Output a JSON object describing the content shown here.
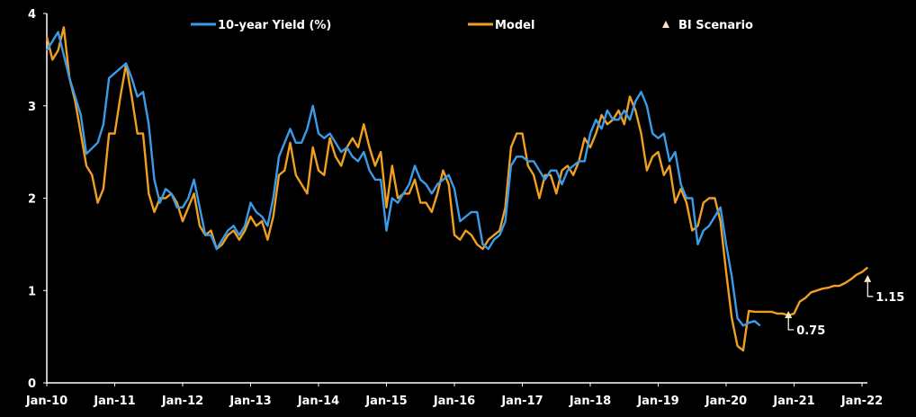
{
  "chart_data": {
    "type": "line",
    "title": "",
    "xlabel": "",
    "ylabel": "",
    "ylim": [
      0,
      4
    ],
    "y_ticks": [
      "0",
      "1",
      "2",
      "3",
      "4"
    ],
    "x_ticks": [
      "Jan-10",
      "Jan-11",
      "Jan-12",
      "Jan-13",
      "Jan-14",
      "Jan-15",
      "Jan-16",
      "Jan-17",
      "Jan-18",
      "Jan-19",
      "Jan-20",
      "Jan-21",
      "Jan-22"
    ],
    "grid": false,
    "legend_position": "top",
    "series": [
      {
        "name": "10-year Yield (%)",
        "color": "#3a9ce8",
        "points": [
          [
            "Jan-10",
            3.6
          ],
          [
            "Mar-10",
            3.8
          ],
          [
            "May-10",
            3.3
          ],
          [
            "Jul-10",
            2.9
          ],
          [
            "Aug-10",
            2.48
          ],
          [
            "Oct-10",
            2.6
          ],
          [
            "Nov-10",
            2.8
          ],
          [
            "Dec-10",
            3.3
          ],
          [
            "Mar-11",
            3.46
          ],
          [
            "Apr-11",
            3.3
          ],
          [
            "May-11",
            3.1
          ],
          [
            "Jun-11",
            3.15
          ],
          [
            "Jul-11",
            2.8
          ],
          [
            "Aug-11",
            2.2
          ],
          [
            "Sep-11",
            1.95
          ],
          [
            "Oct-11",
            2.1
          ],
          [
            "Nov-11",
            2.05
          ],
          [
            "Dec-11",
            1.9
          ],
          [
            "Jan-12",
            1.9
          ],
          [
            "Feb-12",
            2.0
          ],
          [
            "Mar-12",
            2.2
          ],
          [
            "Apr-12",
            1.9
          ],
          [
            "May-12",
            1.6
          ],
          [
            "Jun-12",
            1.6
          ],
          [
            "Jul-12",
            1.45
          ],
          [
            "Aug-12",
            1.55
          ],
          [
            "Sep-12",
            1.65
          ],
          [
            "Oct-12",
            1.7
          ],
          [
            "Nov-12",
            1.6
          ],
          [
            "Dec-12",
            1.7
          ],
          [
            "Jan-13",
            1.95
          ],
          [
            "Feb-13",
            1.85
          ],
          [
            "Mar-13",
            1.8
          ],
          [
            "Apr-13",
            1.7
          ],
          [
            "May-13",
            2.0
          ],
          [
            "Jun-13",
            2.45
          ],
          [
            "Jul-13",
            2.6
          ],
          [
            "Aug-13",
            2.75
          ],
          [
            "Sep-13",
            2.6
          ],
          [
            "Oct-13",
            2.6
          ],
          [
            "Nov-13",
            2.75
          ],
          [
            "Dec-13",
            3.0
          ],
          [
            "Jan-14",
            2.7
          ],
          [
            "Feb-14",
            2.65
          ],
          [
            "Mar-14",
            2.7
          ],
          [
            "Apr-14",
            2.6
          ],
          [
            "May-14",
            2.5
          ],
          [
            "Jun-14",
            2.55
          ],
          [
            "Jul-14",
            2.45
          ],
          [
            "Aug-14",
            2.4
          ],
          [
            "Sep-14",
            2.5
          ],
          [
            "Oct-14",
            2.3
          ],
          [
            "Nov-14",
            2.2
          ],
          [
            "Dec-14",
            2.2
          ],
          [
            "Jan-15",
            1.65
          ],
          [
            "Feb-15",
            2.0
          ],
          [
            "Mar-15",
            1.95
          ],
          [
            "Apr-15",
            2.05
          ],
          [
            "May-15",
            2.15
          ],
          [
            "Jun-15",
            2.35
          ],
          [
            "Jul-15",
            2.2
          ],
          [
            "Aug-15",
            2.15
          ],
          [
            "Sep-15",
            2.05
          ],
          [
            "Oct-15",
            2.15
          ],
          [
            "Nov-15",
            2.2
          ],
          [
            "Dec-15",
            2.25
          ],
          [
            "Jan-16",
            2.1
          ],
          [
            "Feb-16",
            1.75
          ],
          [
            "Mar-16",
            1.8
          ],
          [
            "Apr-16",
            1.85
          ],
          [
            "May-16",
            1.85
          ],
          [
            "Jun-16",
            1.5
          ],
          [
            "Jul-16",
            1.45
          ],
          [
            "Aug-16",
            1.55
          ],
          [
            "Sep-16",
            1.6
          ],
          [
            "Oct-16",
            1.75
          ],
          [
            "Nov-16",
            2.35
          ],
          [
            "Dec-16",
            2.45
          ],
          [
            "Jan-17",
            2.45
          ],
          [
            "Feb-17",
            2.4
          ],
          [
            "Mar-17",
            2.4
          ],
          [
            "Apr-17",
            2.3
          ],
          [
            "May-17",
            2.2
          ],
          [
            "Jun-17",
            2.3
          ],
          [
            "Jul-17",
            2.3
          ],
          [
            "Aug-17",
            2.15
          ],
          [
            "Sep-17",
            2.3
          ],
          [
            "Oct-17",
            2.35
          ],
          [
            "Nov-17",
            2.4
          ],
          [
            "Dec-17",
            2.4
          ],
          [
            "Jan-18",
            2.7
          ],
          [
            "Feb-18",
            2.85
          ],
          [
            "Mar-18",
            2.75
          ],
          [
            "Apr-18",
            2.95
          ],
          [
            "May-18",
            2.85
          ],
          [
            "Jun-18",
            2.85
          ],
          [
            "Jul-18",
            2.95
          ],
          [
            "Aug-18",
            2.85
          ],
          [
            "Sep-18",
            3.05
          ],
          [
            "Oct-18",
            3.15
          ],
          [
            "Nov-18",
            3.0
          ],
          [
            "Dec-18",
            2.7
          ],
          [
            "Jan-19",
            2.65
          ],
          [
            "Feb-19",
            2.7
          ],
          [
            "Mar-19",
            2.4
          ],
          [
            "Apr-19",
            2.5
          ],
          [
            "May-19",
            2.15
          ],
          [
            "Jun-19",
            2.0
          ],
          [
            "Jul-19",
            2.0
          ],
          [
            "Aug-19",
            1.5
          ],
          [
            "Sep-19",
            1.65
          ],
          [
            "Oct-19",
            1.7
          ],
          [
            "Nov-19",
            1.8
          ],
          [
            "Dec-19",
            1.9
          ],
          [
            "Jan-20",
            1.5
          ],
          [
            "Feb-20",
            1.15
          ],
          [
            "Mar-20",
            0.7
          ],
          [
            "Apr-20",
            0.62
          ],
          [
            "May-20",
            0.65
          ],
          [
            "Jun-20",
            0.67
          ],
          [
            "Jul-20",
            0.62
          ]
        ]
      },
      {
        "name": "Model",
        "color": "#f0a020",
        "points": [
          [
            "Jan-10",
            3.75
          ],
          [
            "Feb-10",
            3.5
          ],
          [
            "Mar-10",
            3.6
          ],
          [
            "Apr-10",
            3.85
          ],
          [
            "May-10",
            3.3
          ],
          [
            "Jun-10",
            3.05
          ],
          [
            "Jul-10",
            2.7
          ],
          [
            "Aug-10",
            2.35
          ],
          [
            "Sep-10",
            2.25
          ],
          [
            "Oct-10",
            1.95
          ],
          [
            "Nov-10",
            2.1
          ],
          [
            "Dec-10",
            2.7
          ],
          [
            "Jan-11",
            2.7
          ],
          [
            "Feb-11",
            3.1
          ],
          [
            "Mar-11",
            3.45
          ],
          [
            "Apr-11",
            3.1
          ],
          [
            "May-11",
            2.7
          ],
          [
            "Jun-11",
            2.7
          ],
          [
            "Jul-11",
            2.05
          ],
          [
            "Aug-11",
            1.85
          ],
          [
            "Sep-11",
            2.0
          ],
          [
            "Oct-11",
            2.0
          ],
          [
            "Nov-11",
            2.05
          ],
          [
            "Dec-11",
            1.95
          ],
          [
            "Jan-12",
            1.75
          ],
          [
            "Feb-12",
            1.9
          ],
          [
            "Mar-12",
            2.05
          ],
          [
            "Apr-12",
            1.7
          ],
          [
            "May-12",
            1.6
          ],
          [
            "Jun-12",
            1.65
          ],
          [
            "Jul-12",
            1.45
          ],
          [
            "Aug-12",
            1.5
          ],
          [
            "Sep-12",
            1.6
          ],
          [
            "Oct-12",
            1.65
          ],
          [
            "Nov-12",
            1.55
          ],
          [
            "Dec-12",
            1.65
          ],
          [
            "Jan-13",
            1.8
          ],
          [
            "Feb-13",
            1.7
          ],
          [
            "Mar-13",
            1.75
          ],
          [
            "Apr-13",
            1.55
          ],
          [
            "May-13",
            1.8
          ],
          [
            "Jun-13",
            2.25
          ],
          [
            "Jul-13",
            2.3
          ],
          [
            "Aug-13",
            2.6
          ],
          [
            "Sep-13",
            2.25
          ],
          [
            "Oct-13",
            2.15
          ],
          [
            "Nov-13",
            2.05
          ],
          [
            "Dec-13",
            2.55
          ],
          [
            "Jan-14",
            2.3
          ],
          [
            "Feb-14",
            2.25
          ],
          [
            "Mar-14",
            2.65
          ],
          [
            "Apr-14",
            2.45
          ],
          [
            "May-14",
            2.35
          ],
          [
            "Jun-14",
            2.55
          ],
          [
            "Jul-14",
            2.65
          ],
          [
            "Aug-14",
            2.55
          ],
          [
            "Sep-14",
            2.8
          ],
          [
            "Oct-14",
            2.55
          ],
          [
            "Nov-14",
            2.35
          ],
          [
            "Dec-14",
            2.5
          ],
          [
            "Jan-15",
            1.9
          ],
          [
            "Feb-15",
            2.35
          ],
          [
            "Mar-15",
            2.0
          ],
          [
            "Apr-15",
            2.05
          ],
          [
            "May-15",
            2.05
          ],
          [
            "Jun-15",
            2.2
          ],
          [
            "Jul-15",
            1.95
          ],
          [
            "Aug-15",
            1.95
          ],
          [
            "Sep-15",
            1.85
          ],
          [
            "Oct-15",
            2.05
          ],
          [
            "Nov-15",
            2.3
          ],
          [
            "Dec-15",
            2.15
          ],
          [
            "Jan-16",
            1.6
          ],
          [
            "Feb-16",
            1.55
          ],
          [
            "Mar-16",
            1.65
          ],
          [
            "Apr-16",
            1.6
          ],
          [
            "May-16",
            1.5
          ],
          [
            "Jun-16",
            1.45
          ],
          [
            "Jul-16",
            1.55
          ],
          [
            "Aug-16",
            1.6
          ],
          [
            "Sep-16",
            1.65
          ],
          [
            "Oct-16",
            1.9
          ],
          [
            "Nov-16",
            2.55
          ],
          [
            "Dec-16",
            2.7
          ],
          [
            "Jan-17",
            2.7
          ],
          [
            "Feb-17",
            2.35
          ],
          [
            "Mar-17",
            2.25
          ],
          [
            "Apr-17",
            2.0
          ],
          [
            "May-17",
            2.25
          ],
          [
            "Jun-17",
            2.25
          ],
          [
            "Jul-17",
            2.05
          ],
          [
            "Aug-17",
            2.3
          ],
          [
            "Sep-17",
            2.35
          ],
          [
            "Oct-17",
            2.25
          ],
          [
            "Nov-17",
            2.4
          ],
          [
            "Dec-17",
            2.65
          ],
          [
            "Jan-18",
            2.55
          ],
          [
            "Feb-18",
            2.7
          ],
          [
            "Mar-18",
            2.9
          ],
          [
            "Apr-18",
            2.8
          ],
          [
            "May-18",
            2.85
          ],
          [
            "Jun-18",
            2.95
          ],
          [
            "Jul-18",
            2.8
          ],
          [
            "Aug-18",
            3.1
          ],
          [
            "Sep-18",
            2.95
          ],
          [
            "Oct-18",
            2.7
          ],
          [
            "Nov-18",
            2.3
          ],
          [
            "Dec-18",
            2.45
          ],
          [
            "Jan-19",
            2.5
          ],
          [
            "Feb-19",
            2.25
          ],
          [
            "Mar-19",
            2.35
          ],
          [
            "Apr-19",
            1.95
          ],
          [
            "May-19",
            2.1
          ],
          [
            "Jun-19",
            1.95
          ],
          [
            "Jul-19",
            1.65
          ],
          [
            "Aug-19",
            1.7
          ],
          [
            "Sep-19",
            1.95
          ],
          [
            "Oct-19",
            2.0
          ],
          [
            "Nov-19",
            2.0
          ],
          [
            "Dec-19",
            1.75
          ],
          [
            "Jan-20",
            1.2
          ],
          [
            "Feb-20",
            0.7
          ],
          [
            "Mar-20",
            0.4
          ],
          [
            "Apr-20",
            0.35
          ],
          [
            "May-20",
            0.78
          ],
          [
            "Jun-20",
            0.77
          ],
          [
            "Jul-20",
            0.77
          ],
          [
            "Aug-20",
            0.77
          ],
          [
            "Sep-20",
            0.77
          ],
          [
            "Oct-20",
            0.75
          ],
          [
            "Nov-20",
            0.75
          ],
          [
            "Dec-20",
            0.73
          ],
          [
            "Jan-21",
            0.75
          ],
          [
            "Feb-21",
            0.88
          ],
          [
            "Mar-21",
            0.92
          ],
          [
            "Apr-21",
            0.98
          ],
          [
            "May-21",
            1.0
          ],
          [
            "Jun-21",
            1.02
          ],
          [
            "Jul-21",
            1.03
          ],
          [
            "Aug-21",
            1.05
          ],
          [
            "Sep-21",
            1.05
          ],
          [
            "Oct-21",
            1.08
          ],
          [
            "Nov-21",
            1.12
          ],
          [
            "Dec-21",
            1.17
          ],
          [
            "Jan-22",
            1.2
          ],
          [
            "Feb-22",
            1.25
          ]
        ]
      }
    ],
    "bi_scenario": {
      "name": "BI Scenario",
      "color": "#f5e6c0",
      "points": [
        {
          "x": "Dec-20",
          "y": 0.75,
          "label": "0.75"
        },
        {
          "x": "Feb-22",
          "y": 1.15,
          "label": "1.15"
        }
      ]
    }
  }
}
